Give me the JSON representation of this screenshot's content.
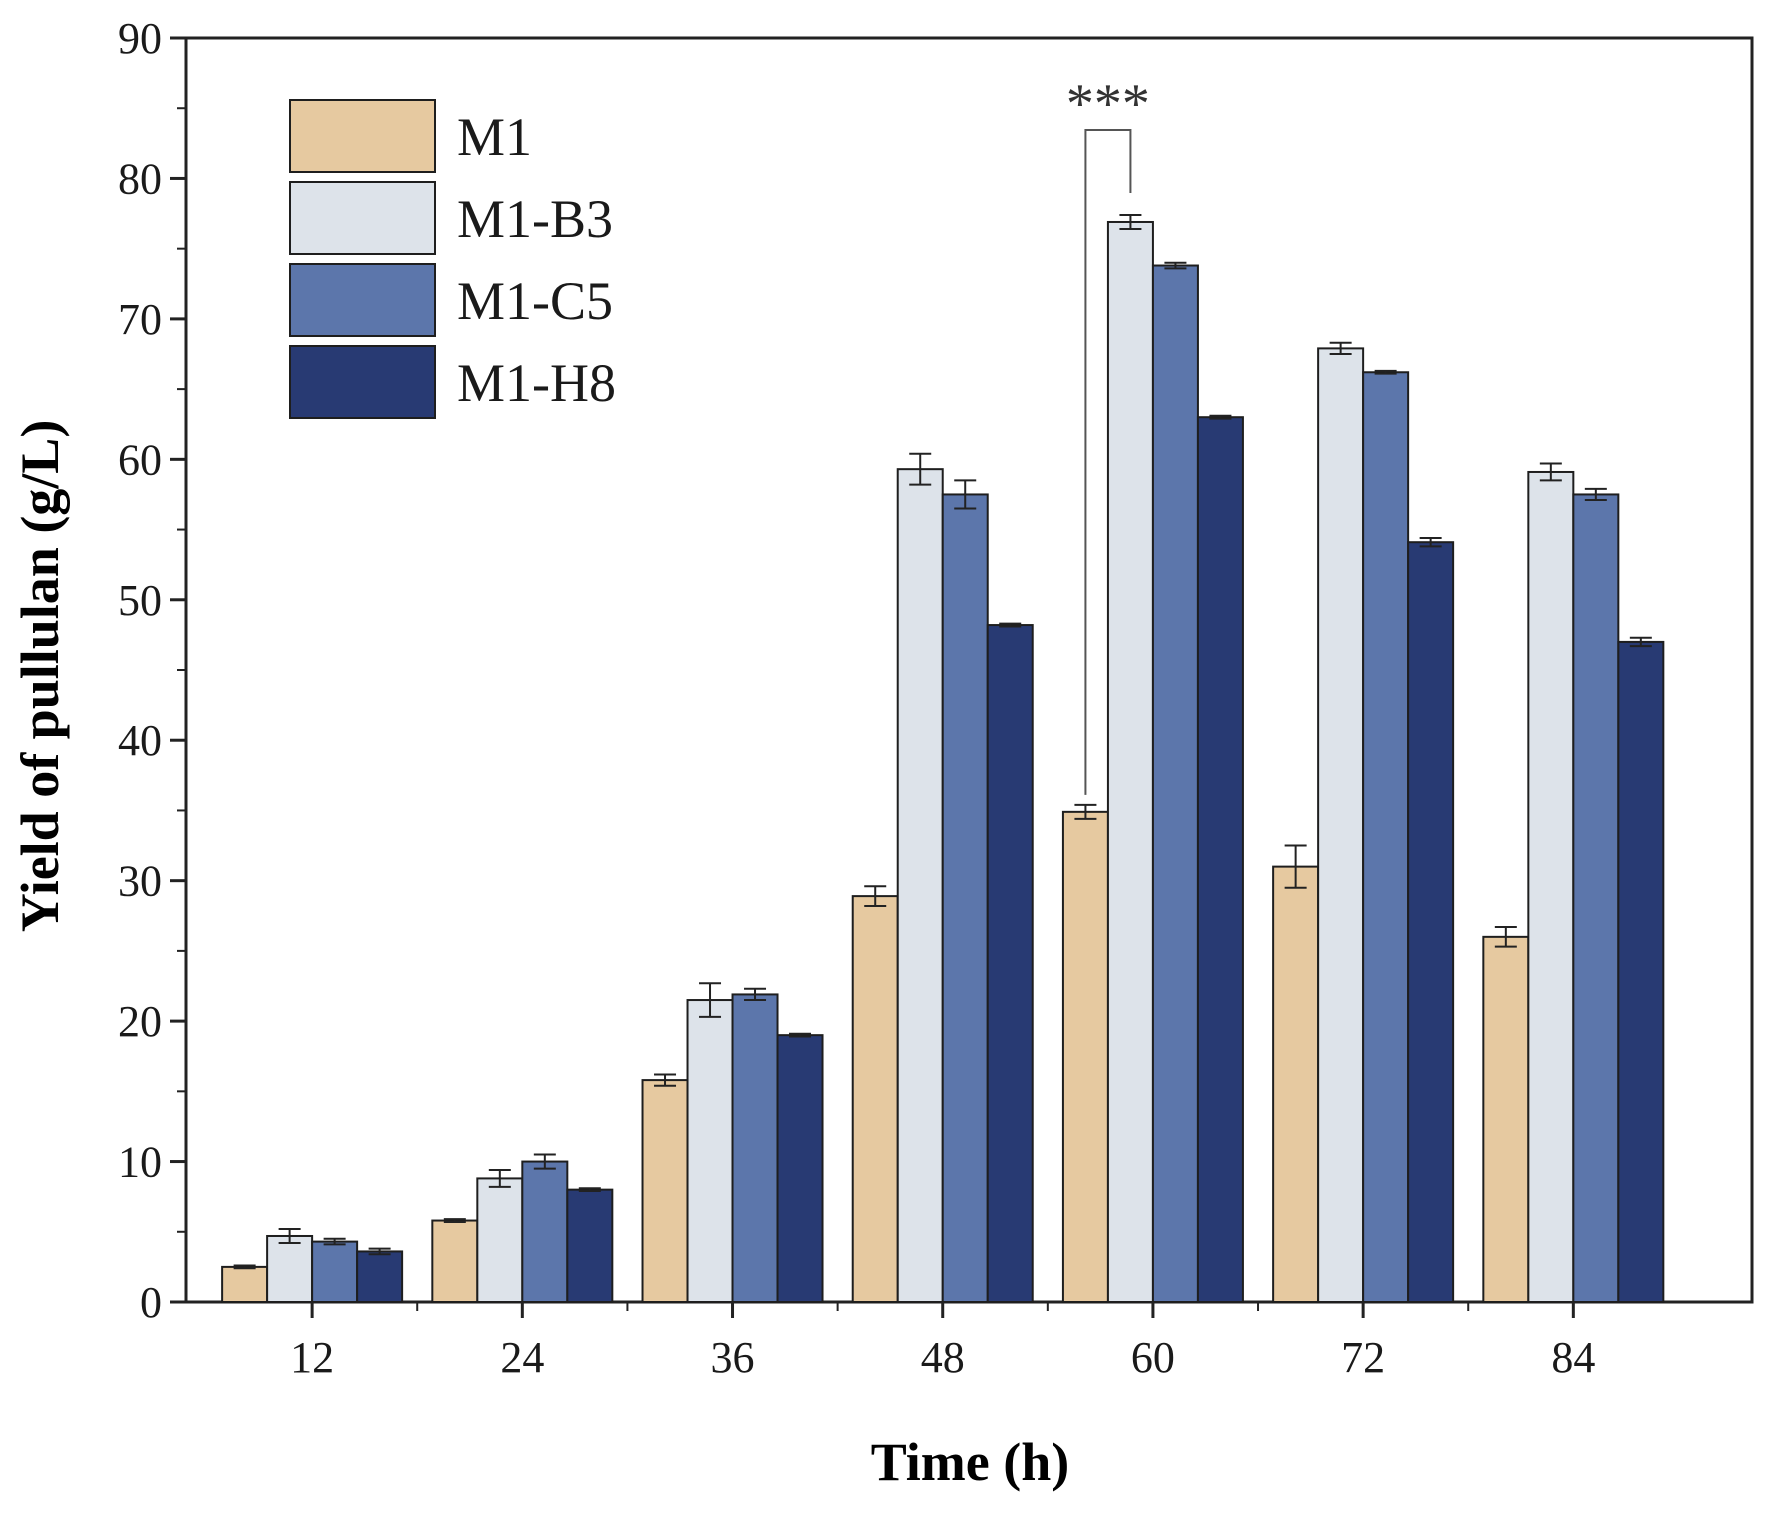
{
  "chart_data": {
    "type": "bar",
    "xlabel": "Time (h)",
    "ylabel": "Yield of pullulan (g/L)",
    "ylim": [
      0,
      90
    ],
    "yticks": [
      0,
      10,
      20,
      30,
      40,
      50,
      60,
      70,
      80,
      90
    ],
    "categories": [
      "12",
      "24",
      "36",
      "48",
      "60",
      "72",
      "84"
    ],
    "grid": false,
    "legend_position": "top-left",
    "series": [
      {
        "name": "M1",
        "color": "#e6c9a0",
        "values": [
          2.5,
          5.8,
          15.8,
          28.9,
          34.9,
          31.0,
          26.0
        ],
        "errors": [
          0.1,
          0.1,
          0.4,
          0.7,
          0.5,
          1.5,
          0.7
        ]
      },
      {
        "name": "M1-B3",
        "color": "#dde3ea",
        "values": [
          4.7,
          8.8,
          21.5,
          59.3,
          76.9,
          67.9,
          59.1
        ],
        "errors": [
          0.5,
          0.6,
          1.2,
          1.1,
          0.5,
          0.4,
          0.6
        ]
      },
      {
        "name": "M1-C5",
        "color": "#5c76ab",
        "values": [
          4.3,
          10.0,
          21.9,
          57.5,
          73.8,
          66.2,
          57.5
        ],
        "errors": [
          0.2,
          0.5,
          0.4,
          1.0,
          0.2,
          0.1,
          0.4
        ]
      },
      {
        "name": "M1-H8",
        "color": "#283a73",
        "values": [
          3.6,
          8.0,
          19.0,
          48.2,
          63.0,
          54.1,
          47.0
        ],
        "errors": [
          0.2,
          0.1,
          0.1,
          0.1,
          0.1,
          0.3,
          0.3
        ]
      }
    ],
    "annotations": [
      {
        "text": "***",
        "category": "60",
        "between_series": [
          "M1",
          "M1-B3"
        ]
      }
    ]
  }
}
